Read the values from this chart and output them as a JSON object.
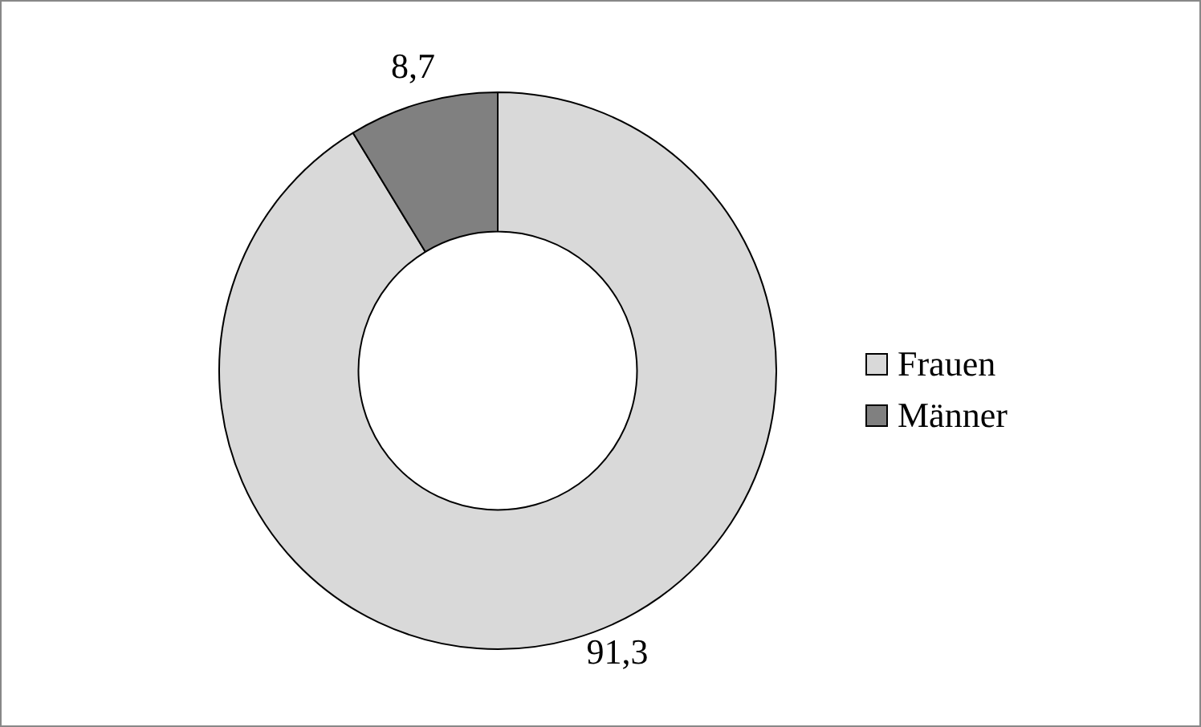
{
  "chart_data": {
    "type": "donut",
    "categories": [
      "Frauen",
      "Männer"
    ],
    "values": [
      91.3,
      8.7
    ],
    "colors": [
      "#d9d9d9",
      "#808080"
    ],
    "value_labels": [
      "91,3",
      "8,7"
    ],
    "legend": "right"
  }
}
